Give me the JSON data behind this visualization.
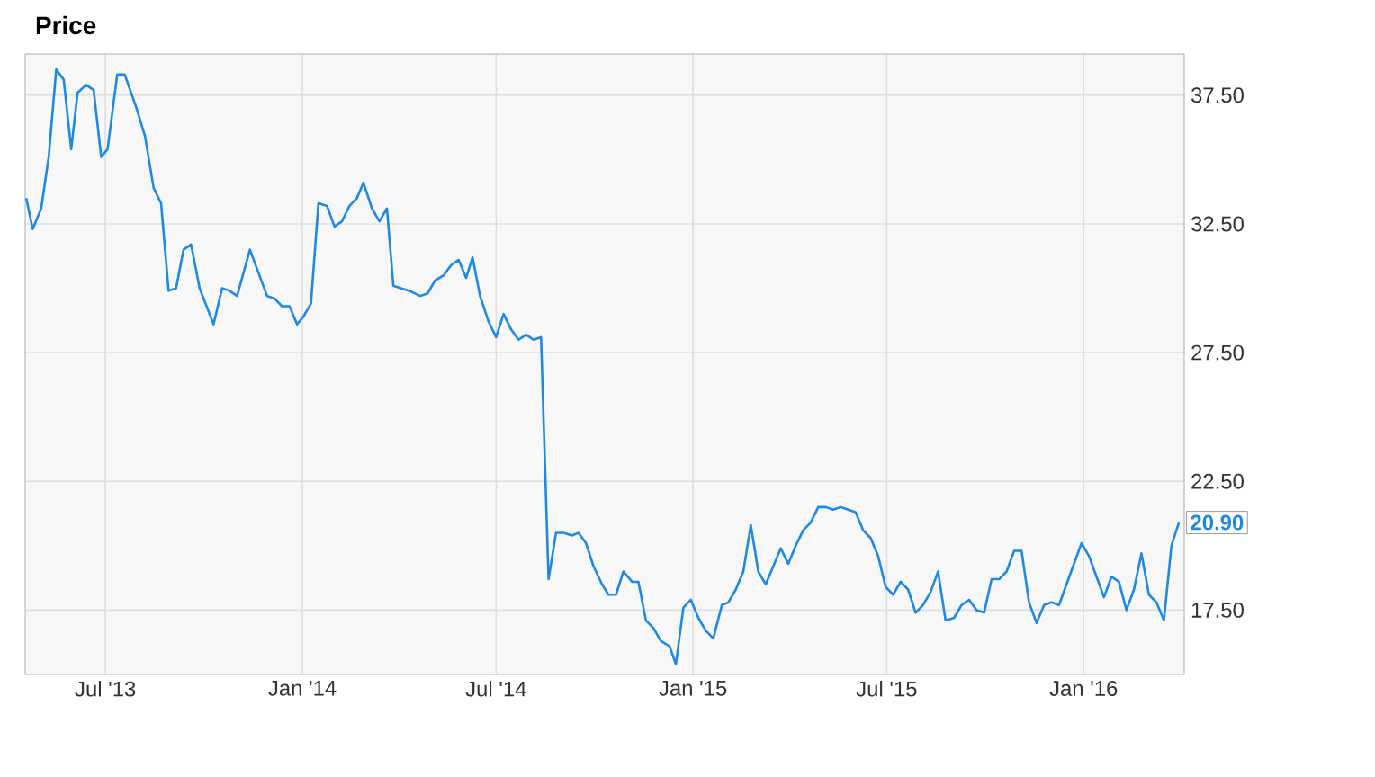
{
  "chart_data": {
    "type": "line",
    "title": "Price",
    "x": [
      "2013-04-18",
      "2013-04-24",
      "2013-05-02",
      "2013-05-09",
      "2013-05-16",
      "2013-05-23",
      "2013-05-30",
      "2013-06-05",
      "2013-06-13",
      "2013-06-20",
      "2013-06-27",
      "2013-07-03",
      "2013-07-12",
      "2013-07-19",
      "2013-07-30",
      "2013-08-07",
      "2013-08-15",
      "2013-08-22",
      "2013-08-29",
      "2013-09-05",
      "2013-09-12",
      "2013-09-19",
      "2013-09-27",
      "2013-10-10",
      "2013-10-18",
      "2013-10-25",
      "2013-11-01",
      "2013-11-13",
      "2013-11-29",
      "2013-12-06",
      "2013-12-13",
      "2013-12-20",
      "2013-12-27",
      "2014-01-02",
      "2014-01-09",
      "2014-01-16",
      "2014-01-24",
      "2014-01-31",
      "2014-02-07",
      "2014-02-14",
      "2014-02-21",
      "2014-02-27",
      "2014-03-07",
      "2014-03-14",
      "2014-03-21",
      "2014-03-27",
      "2014-04-03",
      "2014-04-11",
      "2014-04-21",
      "2014-04-28",
      "2014-05-05",
      "2014-05-13",
      "2014-05-20",
      "2014-05-27",
      "2014-06-03",
      "2014-06-09",
      "2014-06-16",
      "2014-06-24",
      "2014-07-01",
      "2014-07-08",
      "2014-07-15",
      "2014-07-22",
      "2014-07-29",
      "2014-08-05",
      "2014-08-12",
      "2014-08-19",
      "2014-08-26",
      "2014-09-02",
      "2014-09-10",
      "2014-09-16",
      "2014-09-23",
      "2014-09-30",
      "2014-10-08",
      "2014-10-14",
      "2014-10-21",
      "2014-10-28",
      "2014-11-05",
      "2014-11-11",
      "2014-11-18",
      "2014-11-25",
      "2014-12-02",
      "2014-12-10",
      "2014-12-16",
      "2014-12-23",
      "2014-12-30",
      "2015-01-06",
      "2015-01-13",
      "2015-01-20",
      "2015-01-28",
      "2015-02-03",
      "2015-02-10",
      "2015-02-17",
      "2015-02-24",
      "2015-03-03",
      "2015-03-10",
      "2015-03-17",
      "2015-03-24",
      "2015-03-31",
      "2015-04-07",
      "2015-04-14",
      "2015-04-21",
      "2015-04-28",
      "2015-05-05",
      "2015-05-12",
      "2015-05-19",
      "2015-05-26",
      "2015-06-02",
      "2015-06-09",
      "2015-06-16",
      "2015-06-23",
      "2015-06-30",
      "2015-07-07",
      "2015-07-14",
      "2015-07-21",
      "2015-07-28",
      "2015-08-04",
      "2015-08-11",
      "2015-08-18",
      "2015-08-25",
      "2015-09-02",
      "2015-09-09",
      "2015-09-16",
      "2015-09-23",
      "2015-09-30",
      "2015-10-07",
      "2015-10-14",
      "2015-10-21",
      "2015-10-28",
      "2015-11-04",
      "2015-11-11",
      "2015-11-18",
      "2015-11-25",
      "2015-12-02",
      "2015-12-09",
      "2015-12-16",
      "2015-12-23",
      "2015-12-30",
      "2016-01-06",
      "2016-01-13",
      "2016-01-20",
      "2016-01-27",
      "2016-02-03",
      "2016-02-10",
      "2016-02-17",
      "2016-02-24",
      "2016-03-02",
      "2016-03-09",
      "2016-03-16",
      "2016-03-23",
      "2016-03-30"
    ],
    "values": [
      33.5,
      32.3,
      33.1,
      35.1,
      38.5,
      38.1,
      35.4,
      37.6,
      37.9,
      37.7,
      35.1,
      35.4,
      38.3,
      38.3,
      37.0,
      35.9,
      33.9,
      33.3,
      29.9,
      30.0,
      31.5,
      31.7,
      30.0,
      28.6,
      30.0,
      29.9,
      29.7,
      31.5,
      29.7,
      29.6,
      29.3,
      29.3,
      28.6,
      28.9,
      29.4,
      33.3,
      33.2,
      32.4,
      32.6,
      33.2,
      33.5,
      34.1,
      33.1,
      32.6,
      33.1,
      30.1,
      30.0,
      29.9,
      29.7,
      29.8,
      30.3,
      30.5,
      30.9,
      31.1,
      30.4,
      31.2,
      29.7,
      28.7,
      28.1,
      29.0,
      28.4,
      28.0,
      28.2,
      28.0,
      28.1,
      18.7,
      20.5,
      20.5,
      20.4,
      20.5,
      20.1,
      19.2,
      18.5,
      18.1,
      18.1,
      19.0,
      18.6,
      18.6,
      17.1,
      16.8,
      16.3,
      16.1,
      15.4,
      17.6,
      17.9,
      17.2,
      16.7,
      16.4,
      17.7,
      17.8,
      18.3,
      19.0,
      20.8,
      19.0,
      18.5,
      19.2,
      19.9,
      19.3,
      20.0,
      20.6,
      20.9,
      21.5,
      21.5,
      21.4,
      21.5,
      21.4,
      21.3,
      20.6,
      20.3,
      19.6,
      18.4,
      18.1,
      18.6,
      18.3,
      17.4,
      17.7,
      18.2,
      19.0,
      17.1,
      17.2,
      17.7,
      17.9,
      17.5,
      17.4,
      18.7,
      18.7,
      19.0,
      19.8,
      19.8,
      17.8,
      17.0,
      17.7,
      17.8,
      17.7,
      18.5,
      19.3,
      20.1,
      19.6,
      18.8,
      18.0,
      18.8,
      18.6,
      17.5,
      18.3,
      19.7,
      18.1,
      17.8,
      17.1,
      20.0,
      20.9
    ],
    "color": "#1e88e5",
    "xlim": [
      "2013-04-17",
      "2016-04-04"
    ],
    "xticks": [
      {
        "value": "2013-07-01",
        "label": "Jul '13"
      },
      {
        "value": "2014-01-01",
        "label": "Jan '14"
      },
      {
        "value": "2014-07-01",
        "label": "Jul '14"
      },
      {
        "value": "2015-01-01",
        "label": "Jan '15"
      },
      {
        "value": "2015-07-01",
        "label": "Jul '15"
      },
      {
        "value": "2016-01-01",
        "label": "Jan '16"
      }
    ],
    "ylim": [
      15,
      39.1
    ],
    "yticks": [
      {
        "value": 17.5,
        "label": "17.50"
      },
      {
        "value": 22.5,
        "label": "22.50"
      },
      {
        "value": 27.5,
        "label": "27.50"
      },
      {
        "value": 32.5,
        "label": "32.50"
      },
      {
        "value": 37.5,
        "label": "37.50"
      }
    ],
    "grid": true,
    "annotations": [
      {
        "text": "20.90",
        "x": "2016-03-30",
        "y": 20.9
      }
    ]
  }
}
